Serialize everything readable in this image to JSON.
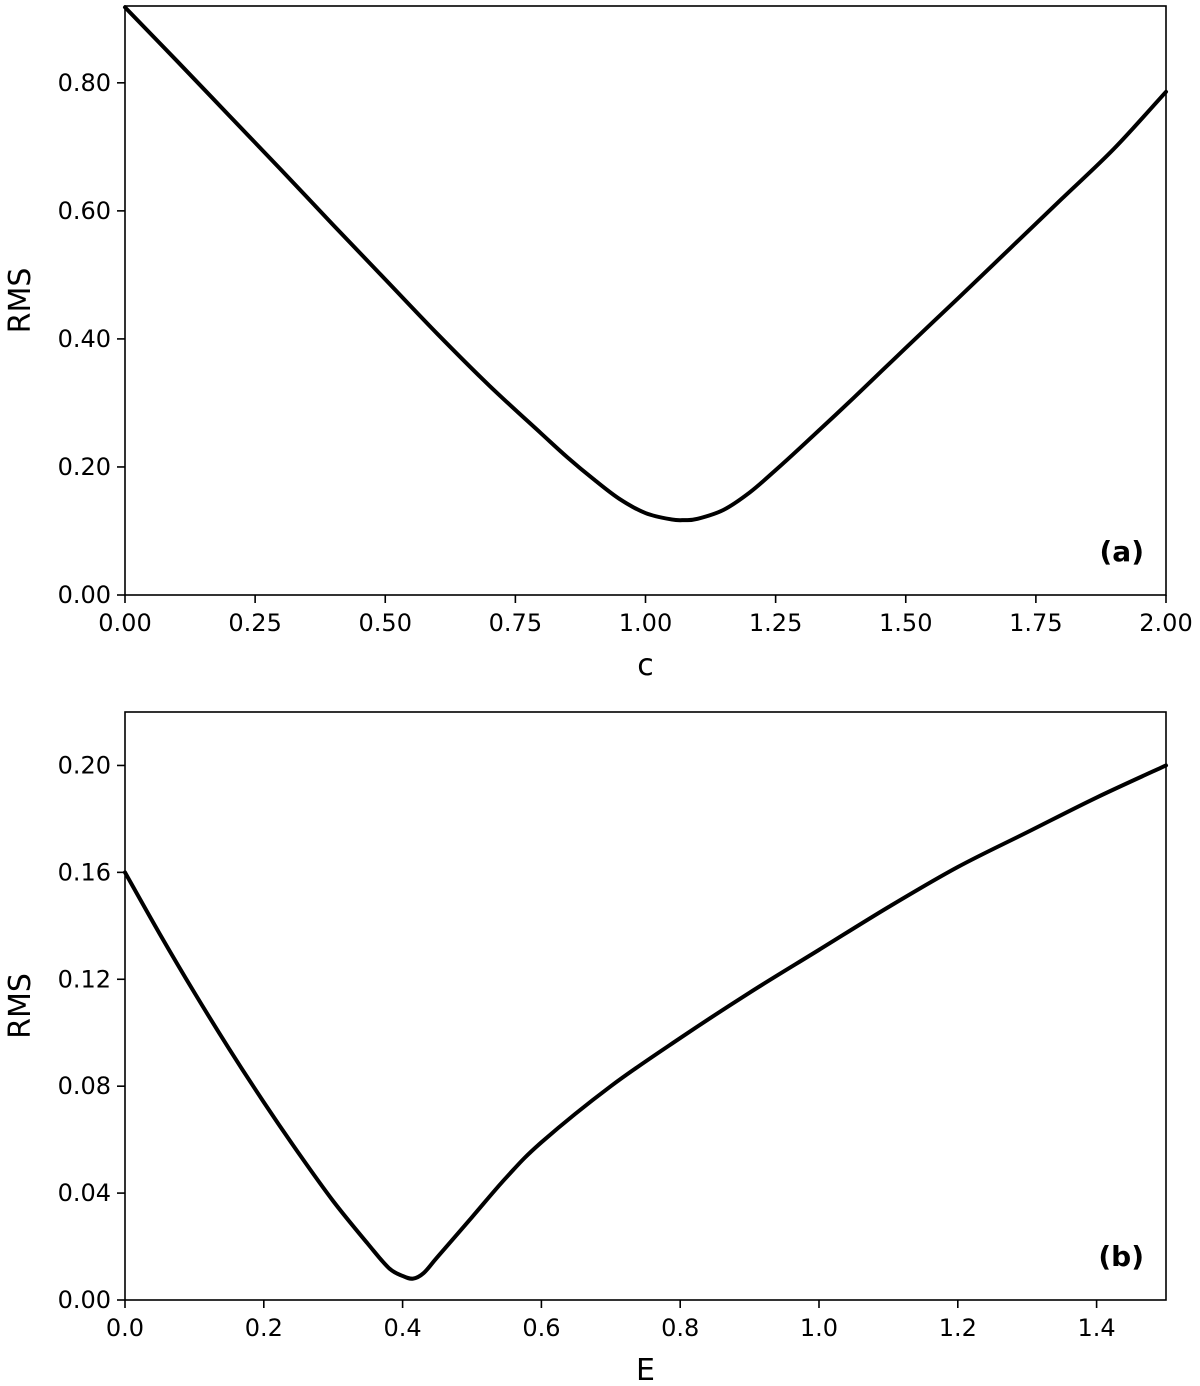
{
  "chart_data": [
    {
      "type": "line",
      "panel_label": "(a)",
      "xlabel": "c",
      "ylabel": "RMS",
      "xlim": [
        0,
        2
      ],
      "ylim": [
        0,
        0.92
      ],
      "xticks": [
        "0.00",
        "0.25",
        "0.50",
        "0.75",
        "1.00",
        "1.25",
        "1.50",
        "1.75",
        "2.00"
      ],
      "yticks": [
        "0.00",
        "0.20",
        "0.40",
        "0.60",
        "0.80"
      ],
      "grid": false,
      "legend": "none",
      "line_color": "#000000",
      "series": [
        {
          "x": [
            0.0,
            0.1,
            0.2,
            0.3,
            0.4,
            0.5,
            0.6,
            0.7,
            0.8,
            0.85,
            0.9,
            0.95,
            1.0,
            1.05,
            1.075,
            1.1,
            1.15,
            1.2,
            1.25,
            1.3,
            1.4,
            1.5,
            1.6,
            1.7,
            1.8,
            1.9,
            2.0
          ],
          "y": [
            0.918,
            0.834,
            0.749,
            0.664,
            0.578,
            0.493,
            0.408,
            0.327,
            0.252,
            0.215,
            0.181,
            0.15,
            0.128,
            0.118,
            0.117,
            0.119,
            0.133,
            0.16,
            0.195,
            0.232,
            0.308,
            0.386,
            0.463,
            0.541,
            0.619,
            0.697,
            0.786
          ]
        }
      ]
    },
    {
      "type": "line",
      "panel_label": "(b)",
      "xlabel": "E",
      "ylabel": "RMS",
      "xlim": [
        0,
        1.5
      ],
      "ylim": [
        0,
        0.22
      ],
      "xticks": [
        "0.0",
        "0.2",
        "0.4",
        "0.6",
        "0.8",
        "1.0",
        "1.2",
        "1.4"
      ],
      "yticks": [
        "0.00",
        "0.04",
        "0.08",
        "0.12",
        "0.16",
        "0.20"
      ],
      "grid": false,
      "legend": "none",
      "line_color": "#000000",
      "series": [
        {
          "x": [
            0.0,
            0.05,
            0.1,
            0.15,
            0.2,
            0.25,
            0.3,
            0.35,
            0.38,
            0.4,
            0.415,
            0.43,
            0.45,
            0.5,
            0.55,
            0.6,
            0.7,
            0.8,
            0.9,
            1.0,
            1.1,
            1.2,
            1.3,
            1.4,
            1.5
          ],
          "y": [
            0.16,
            0.137,
            0.115,
            0.094,
            0.074,
            0.055,
            0.037,
            0.021,
            0.012,
            0.009,
            0.008,
            0.01,
            0.016,
            0.031,
            0.046,
            0.059,
            0.08,
            0.098,
            0.115,
            0.131,
            0.147,
            0.162,
            0.175,
            0.188,
            0.2
          ]
        }
      ]
    }
  ]
}
